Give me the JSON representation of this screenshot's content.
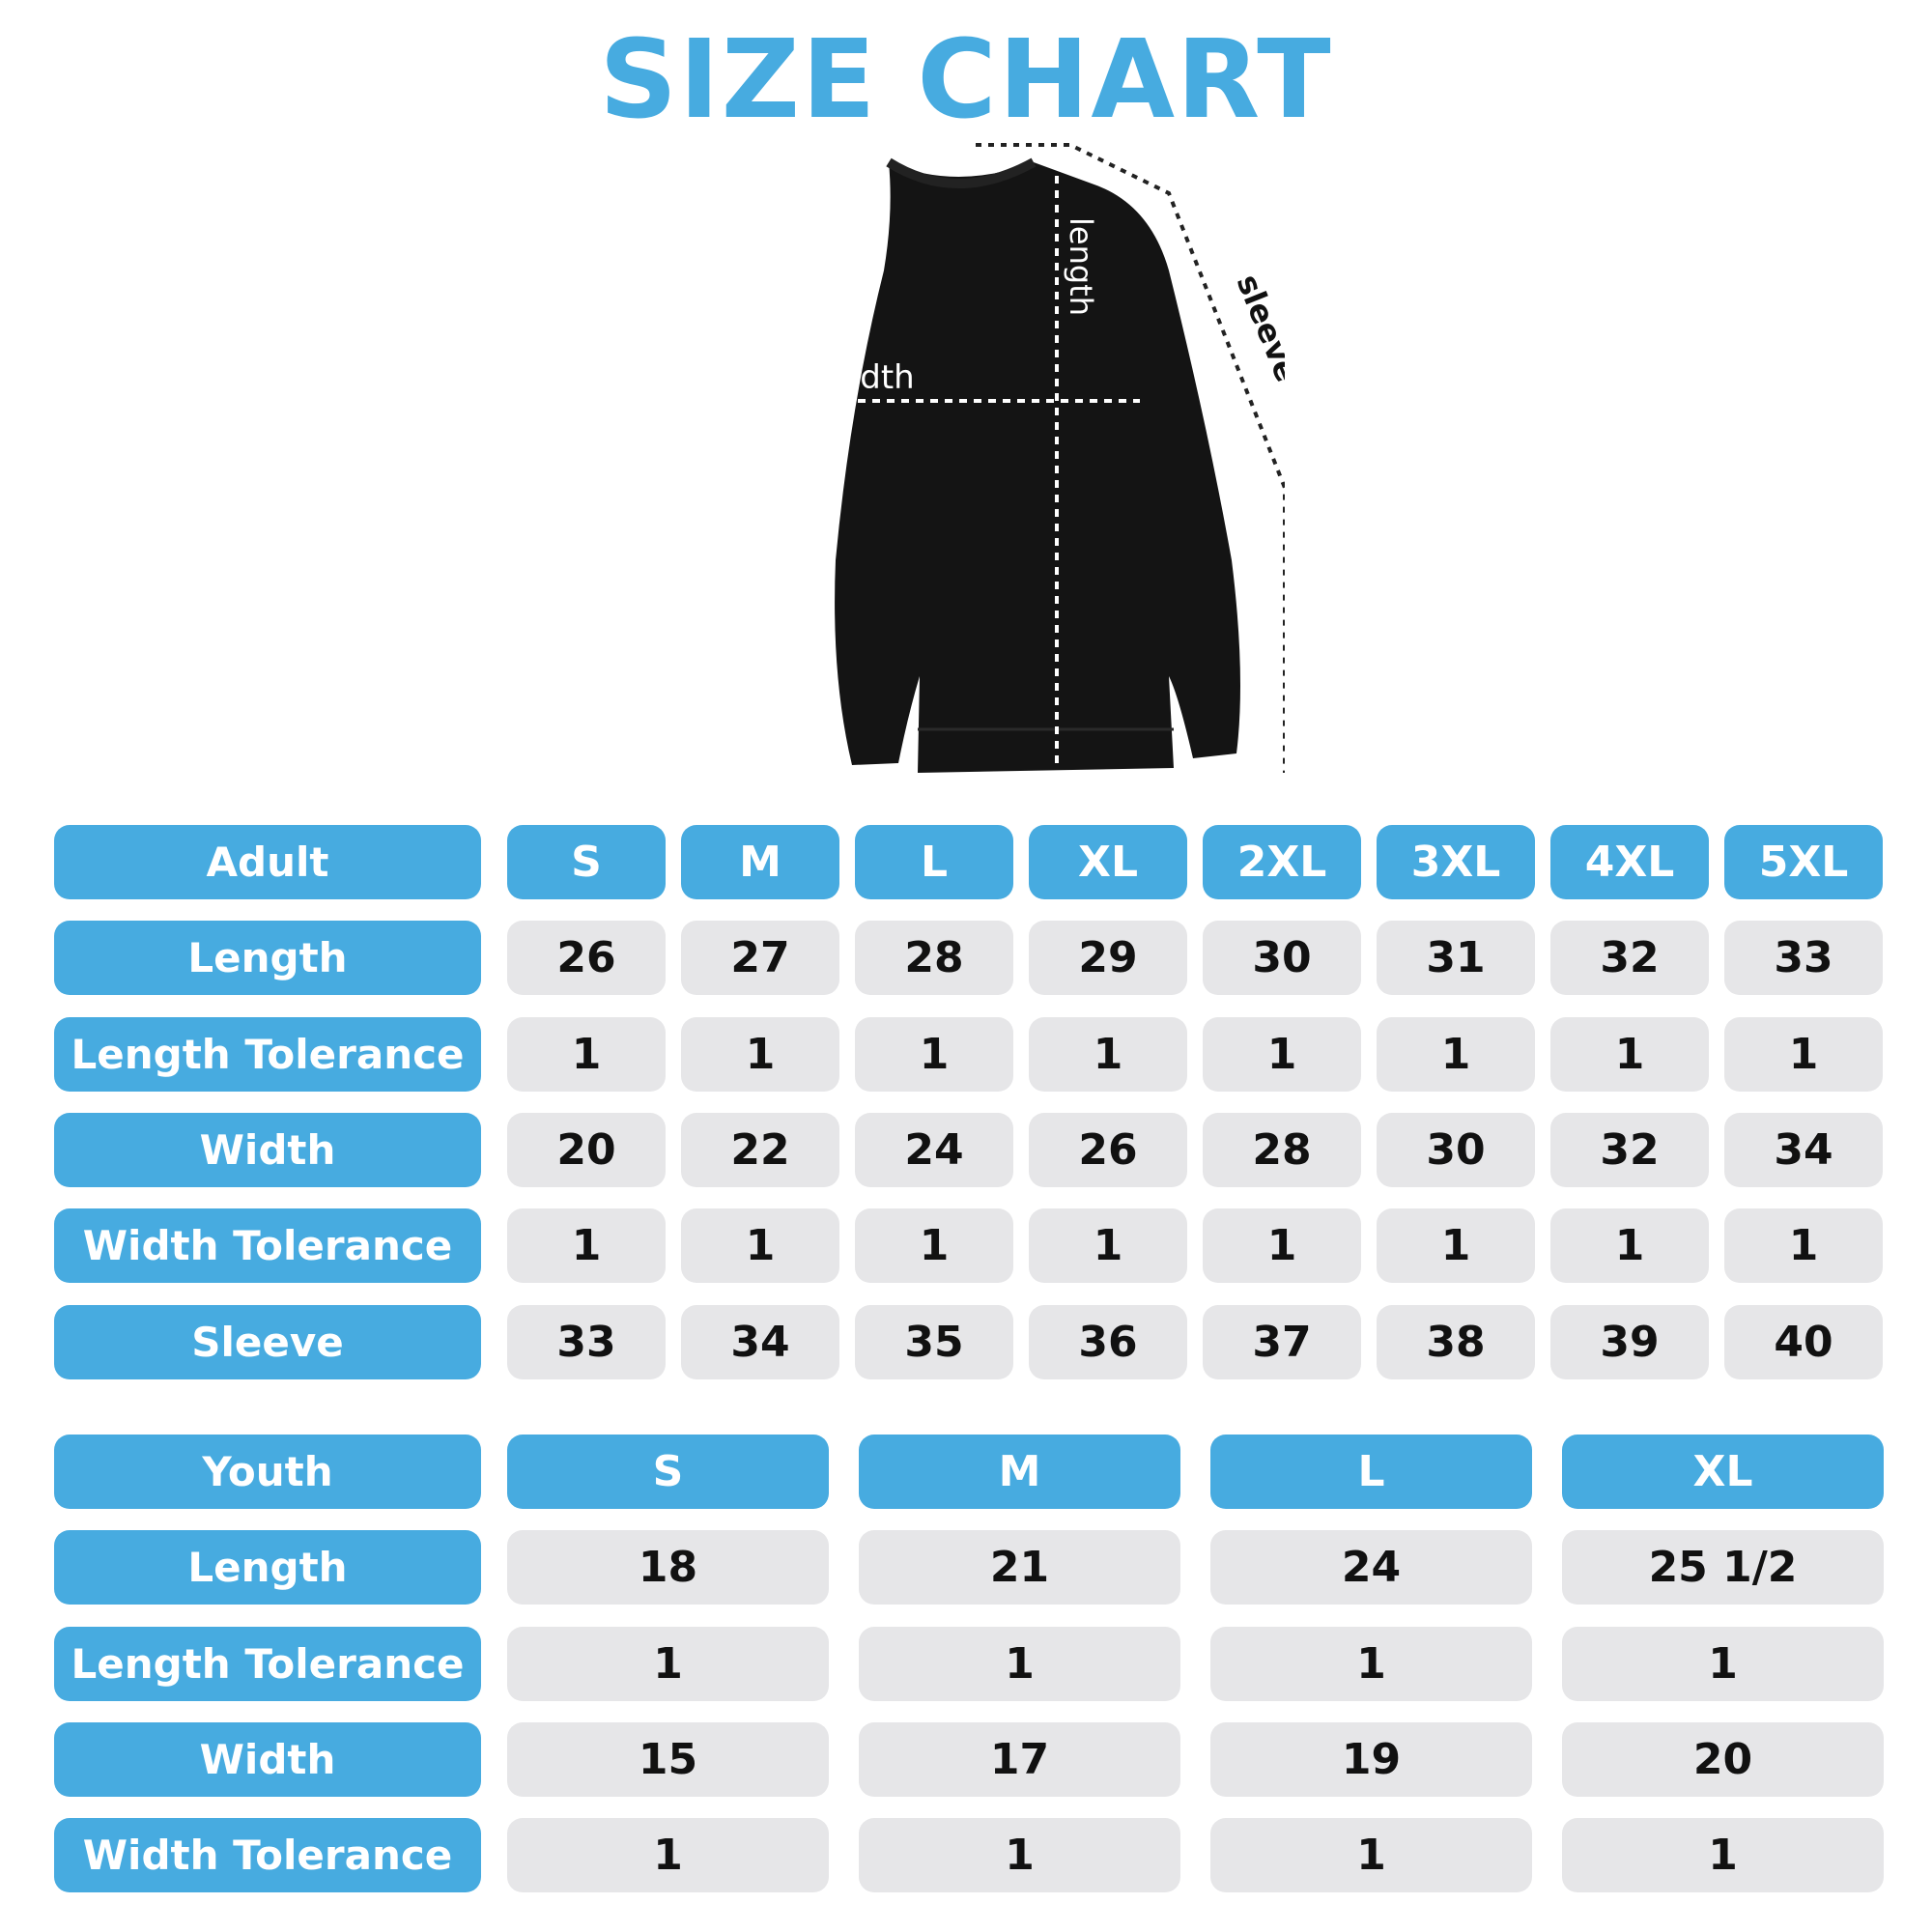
{
  "title": "SIZE CHART",
  "diagram_labels": {
    "length": "length",
    "width": "width",
    "sleeve": "sleeve"
  },
  "colors": {
    "accent": "#47abe0",
    "cell": "#e6e6e8",
    "garment": "#141414"
  },
  "adult": {
    "header": "Adult",
    "sizes": [
      "S",
      "M",
      "L",
      "XL",
      "2XL",
      "3XL",
      "4XL",
      "5XL"
    ],
    "rows": [
      {
        "label": "Length",
        "values": [
          "26",
          "27",
          "28",
          "29",
          "30",
          "31",
          "32",
          "33"
        ]
      },
      {
        "label": "Length Tolerance",
        "values": [
          "1",
          "1",
          "1",
          "1",
          "1",
          "1",
          "1",
          "1"
        ]
      },
      {
        "label": "Width",
        "values": [
          "20",
          "22",
          "24",
          "26",
          "28",
          "30",
          "32",
          "34"
        ]
      },
      {
        "label": "Width Tolerance",
        "values": [
          "1",
          "1",
          "1",
          "1",
          "1",
          "1",
          "1",
          "1"
        ]
      },
      {
        "label": "Sleeve",
        "values": [
          "33",
          "34",
          "35",
          "36",
          "37",
          "38",
          "39",
          "40"
        ]
      }
    ]
  },
  "youth": {
    "header": "Youth",
    "sizes": [
      "S",
      "M",
      "L",
      "XL"
    ],
    "rows": [
      {
        "label": "Length",
        "values": [
          "18",
          "21",
          "24",
          "25 1/2"
        ]
      },
      {
        "label": "Length Tolerance",
        "values": [
          "1",
          "1",
          "1",
          "1"
        ]
      },
      {
        "label": "Width",
        "values": [
          "15",
          "17",
          "19",
          "20"
        ]
      },
      {
        "label": "Width Tolerance",
        "values": [
          "1",
          "1",
          "1",
          "1"
        ]
      }
    ]
  }
}
